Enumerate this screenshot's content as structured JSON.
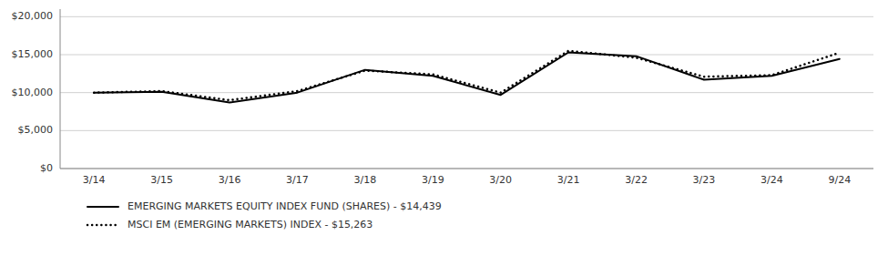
{
  "chart_data": {
    "type": "line",
    "categories": [
      "3/14",
      "3/15",
      "3/16",
      "3/17",
      "3/18",
      "3/19",
      "3/20",
      "3/21",
      "3/22",
      "3/23",
      "3/24",
      "9/24"
    ],
    "series": [
      {
        "name": "EMERGING MARKETS EQUITY INDEX FUND (SHARES) - $14,439",
        "color": "#000000",
        "line_style": "solid",
        "values": [
          10000,
          10100,
          8700,
          10000,
          13000,
          12200,
          9700,
          15300,
          14800,
          11700,
          12200,
          14439
        ]
      },
      {
        "name": "MSCI EM (EMERGING MARKETS) INDEX - $15,263",
        "color": "#000000",
        "line_style": "dotted",
        "values": [
          10000,
          10200,
          9000,
          10200,
          12900,
          12400,
          10000,
          15500,
          14600,
          12100,
          12300,
          15263
        ]
      }
    ],
    "ylim": [
      0,
      21000
    ],
    "yticks": [
      {
        "value": 0,
        "label": "$0"
      },
      {
        "value": 5000,
        "label": "$5,000"
      },
      {
        "value": 10000,
        "label": "$10,000"
      },
      {
        "value": 15000,
        "label": "$15,000"
      },
      {
        "value": 20000,
        "label": "$20,000"
      }
    ],
    "grid": true,
    "legend": "lower left"
  }
}
